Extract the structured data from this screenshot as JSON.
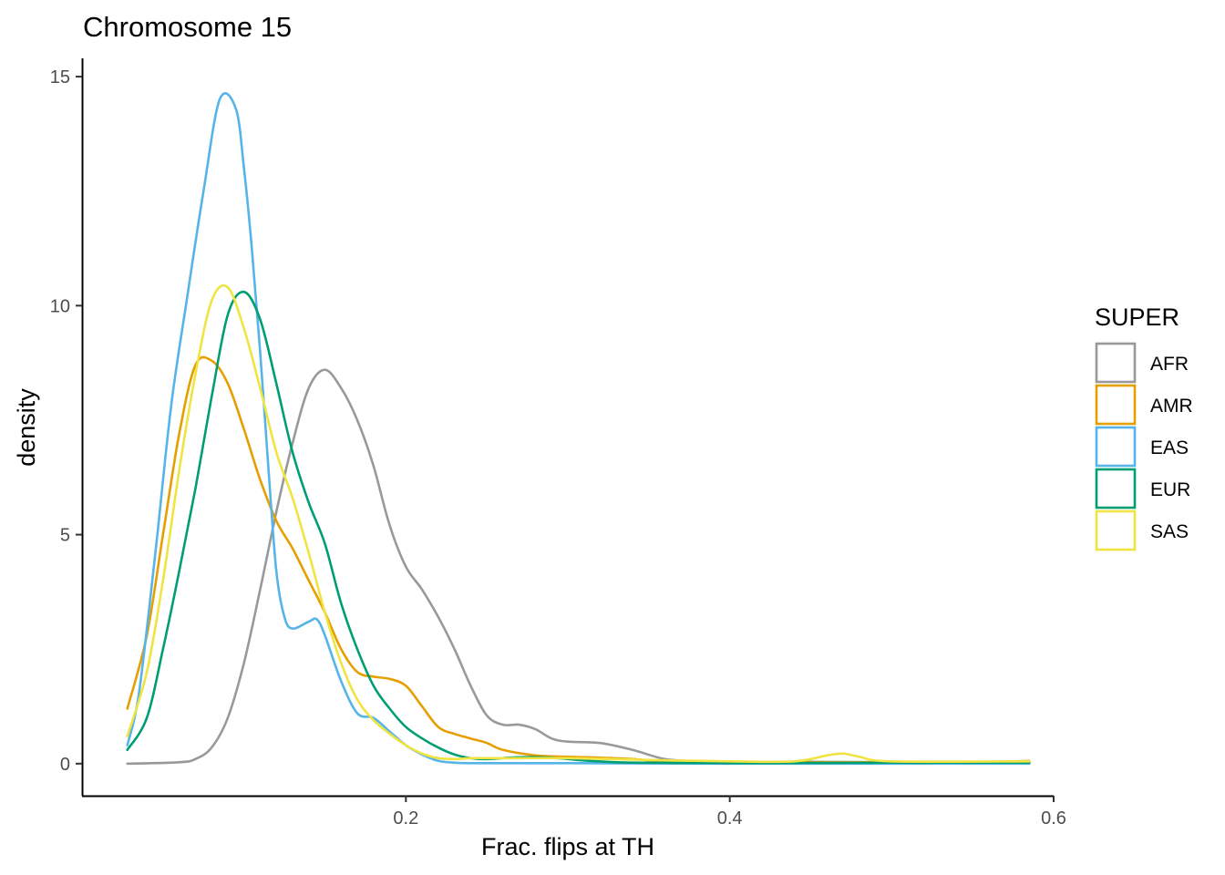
{
  "chart_data": {
    "type": "line",
    "title": "Chromosome 15",
    "xlabel": "Frac. flips at TH",
    "ylabel": "density",
    "xlim": [
      0.0,
      0.6
    ],
    "ylim": [
      -0.7,
      15.4
    ],
    "x_ticks": [
      0.2,
      0.4,
      0.6
    ],
    "x_tick_labels": [
      "0.2",
      "0.4",
      "0.6"
    ],
    "y_ticks": [
      0,
      5,
      10,
      15
    ],
    "y_tick_labels": [
      "0",
      "5",
      "10",
      "15"
    ],
    "grid": false,
    "legend": {
      "title": "SUPER",
      "position": "right"
    },
    "series": [
      {
        "name": "AFR",
        "color": "#999999",
        "x": [
          0.028,
          0.06,
          0.07,
          0.08,
          0.09,
          0.1,
          0.11,
          0.12,
          0.13,
          0.14,
          0.15,
          0.16,
          0.17,
          0.18,
          0.19,
          0.2,
          0.21,
          0.22,
          0.23,
          0.24,
          0.25,
          0.26,
          0.27,
          0.28,
          0.29,
          0.3,
          0.32,
          0.34,
          0.36,
          0.38,
          0.4,
          0.45,
          0.5,
          0.55,
          0.585
        ],
        "y": [
          0,
          0.03,
          0.1,
          0.35,
          1.0,
          2.2,
          3.8,
          5.5,
          7.0,
          8.2,
          8.6,
          8.2,
          7.5,
          6.5,
          5.2,
          4.3,
          3.8,
          3.2,
          2.5,
          1.7,
          1.05,
          0.85,
          0.85,
          0.75,
          0.55,
          0.48,
          0.45,
          0.3,
          0.1,
          0.05,
          0.03,
          0.04,
          0.03,
          0.02,
          0.02
        ]
      },
      {
        "name": "AMR",
        "color": "#E69F00",
        "x": [
          0.028,
          0.04,
          0.05,
          0.06,
          0.07,
          0.08,
          0.09,
          0.1,
          0.11,
          0.12,
          0.13,
          0.14,
          0.15,
          0.16,
          0.17,
          0.18,
          0.19,
          0.2,
          0.21,
          0.22,
          0.23,
          0.24,
          0.25,
          0.26,
          0.28,
          0.3,
          0.32,
          0.34,
          0.36,
          0.4,
          0.5,
          0.55,
          0.585
        ],
        "y": [
          1.2,
          2.8,
          5.0,
          7.2,
          8.7,
          8.8,
          8.3,
          7.3,
          6.2,
          5.3,
          4.7,
          4.0,
          3.3,
          2.5,
          2.0,
          1.9,
          1.85,
          1.7,
          1.25,
          0.8,
          0.65,
          0.55,
          0.45,
          0.3,
          0.18,
          0.15,
          0.13,
          0.1,
          0.05,
          0.03,
          0.03,
          0.03,
          0.06
        ]
      },
      {
        "name": "EAS",
        "color": "#56B4E9",
        "x": [
          0.028,
          0.035,
          0.045,
          0.055,
          0.065,
          0.075,
          0.085,
          0.095,
          0.1,
          0.105,
          0.11,
          0.115,
          0.12,
          0.125,
          0.13,
          0.14,
          0.145,
          0.15,
          0.16,
          0.17,
          0.18,
          0.19,
          0.2,
          0.21,
          0.22,
          0.23,
          0.24,
          0.26,
          0.3,
          0.4,
          0.5,
          0.585
        ],
        "y": [
          0.4,
          1.5,
          4.5,
          7.8,
          10.2,
          12.5,
          14.5,
          14.3,
          13.0,
          11.2,
          9.0,
          6.5,
          4.2,
          3.2,
          2.95,
          3.1,
          3.15,
          2.8,
          1.8,
          1.1,
          1.0,
          0.7,
          0.4,
          0.2,
          0.06,
          0.02,
          0.01,
          0.01,
          0.01,
          0.0,
          0.0,
          0.0
        ]
      },
      {
        "name": "EUR",
        "color": "#009E73",
        "x": [
          0.028,
          0.04,
          0.05,
          0.06,
          0.07,
          0.08,
          0.09,
          0.1,
          0.11,
          0.12,
          0.13,
          0.14,
          0.15,
          0.16,
          0.17,
          0.18,
          0.19,
          0.2,
          0.21,
          0.22,
          0.23,
          0.24,
          0.25,
          0.27,
          0.29,
          0.31,
          0.33,
          0.35,
          0.4,
          0.5,
          0.585
        ],
        "y": [
          0.3,
          1.0,
          2.5,
          4.2,
          6.0,
          8.0,
          9.8,
          10.3,
          9.7,
          8.3,
          6.8,
          5.7,
          4.8,
          3.5,
          2.5,
          1.7,
          1.2,
          0.8,
          0.55,
          0.35,
          0.2,
          0.12,
          0.1,
          0.14,
          0.13,
          0.07,
          0.03,
          0.02,
          0.01,
          0.02,
          0.02
        ]
      },
      {
        "name": "SAS",
        "color": "#F0E442",
        "x": [
          0.028,
          0.04,
          0.05,
          0.06,
          0.07,
          0.08,
          0.09,
          0.1,
          0.11,
          0.12,
          0.13,
          0.14,
          0.15,
          0.16,
          0.17,
          0.18,
          0.19,
          0.2,
          0.21,
          0.22,
          0.23,
          0.24,
          0.25,
          0.27,
          0.3,
          0.35,
          0.4,
          0.44,
          0.46,
          0.47,
          0.48,
          0.5,
          0.585
        ],
        "y": [
          0.6,
          2.0,
          4.0,
          6.4,
          8.5,
          10.1,
          10.4,
          9.5,
          8.2,
          6.8,
          5.8,
          4.6,
          3.3,
          2.2,
          1.4,
          0.95,
          0.65,
          0.4,
          0.22,
          0.12,
          0.1,
          0.12,
          0.12,
          0.12,
          0.12,
          0.08,
          0.05,
          0.05,
          0.18,
          0.22,
          0.15,
          0.05,
          0.05
        ]
      }
    ]
  }
}
